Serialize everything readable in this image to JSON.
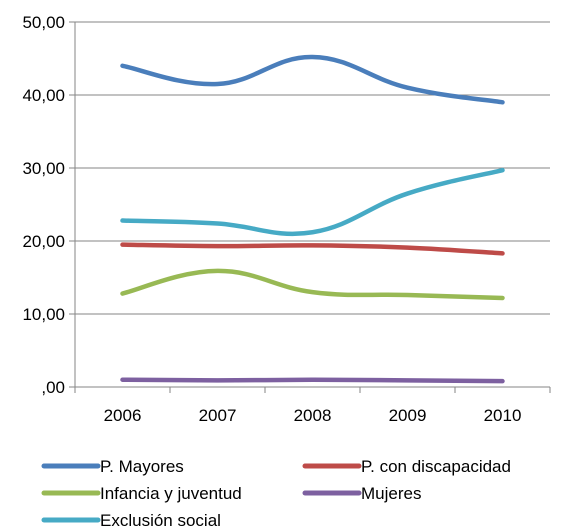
{
  "chart_data": {
    "type": "line",
    "title": "",
    "xlabel": "",
    "ylabel": "",
    "categories": [
      "2006",
      "2007",
      "2008",
      "2009",
      "2010"
    ],
    "y_ticks": [
      ",00",
      "10,00",
      "20,00",
      "30,00",
      "40,00",
      "50,00"
    ],
    "ylim": [
      0,
      50
    ],
    "grid": "horizontal",
    "legend_position": "bottom",
    "series": [
      {
        "name": "P. Mayores",
        "color": "#4a7ebb",
        "values": [
          44.0,
          41.5,
          45.2,
          41.0,
          39.0
        ]
      },
      {
        "name": "P. con discapacidad",
        "color": "#be4b48",
        "values": [
          19.5,
          19.3,
          19.4,
          19.1,
          18.3
        ]
      },
      {
        "name": "Infancia y juventud",
        "color": "#98b954",
        "values": [
          12.8,
          15.9,
          13.0,
          12.6,
          12.2
        ]
      },
      {
        "name": "Mujeres",
        "color": "#7d60a0",
        "values": [
          1.0,
          0.9,
          1.0,
          0.9,
          0.8
        ]
      },
      {
        "name": "Exclusión social",
        "color": "#46aac5",
        "values": [
          22.8,
          22.4,
          21.2,
          26.5,
          29.7
        ]
      }
    ]
  }
}
